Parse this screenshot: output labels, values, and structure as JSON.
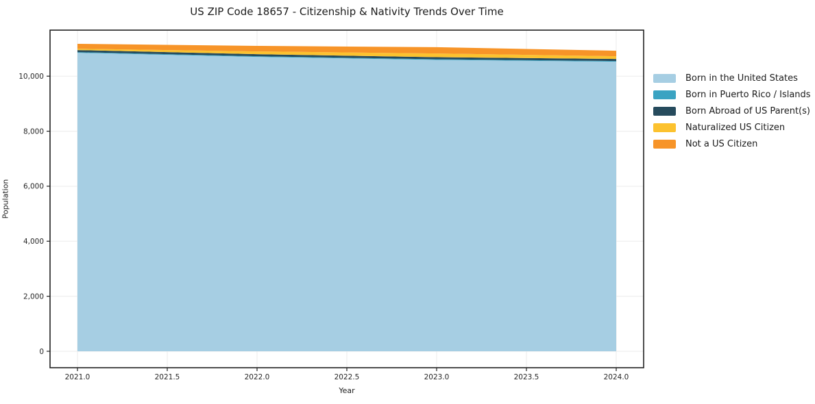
{
  "title": "US ZIP Code 18657 - Citizenship & Nativity Trends Over Time",
  "colors": {
    "background": "#ffffff",
    "plot_frame": "#1f1f1f",
    "gridline": "#ebebeb",
    "tick_text": "#262626"
  },
  "chart_data": {
    "type": "area",
    "stacked": true,
    "title": "US ZIP Code 18657 - Citizenship & Nativity Trends Over Time",
    "xlabel": "Year",
    "ylabel": "Population",
    "x": [
      2021,
      2022,
      2023,
      2024
    ],
    "x_ticks": [
      2021.0,
      2021.5,
      2022.0,
      2022.5,
      2023.0,
      2023.5,
      2024.0
    ],
    "x_ticklabels": [
      "2021.0",
      "2021.5",
      "2022.0",
      "2022.5",
      "2023.0",
      "2023.5",
      "2024.0"
    ],
    "y_ticks": [
      0,
      2000,
      4000,
      6000,
      8000,
      10000
    ],
    "y_ticklabels": [
      "0",
      "2,000",
      "4,000",
      "6,000",
      "8,000",
      "10,000"
    ],
    "xlim": [
      2020.85,
      2024.15
    ],
    "ylim": [
      -600,
      11670
    ],
    "grid": true,
    "legend_position": "right",
    "series": [
      {
        "name": "Born in the United States",
        "color": "#a6cee3",
        "values": [
          10850,
          10700,
          10590,
          10525
        ]
      },
      {
        "name": "Born in Puerto Rico / Islands",
        "color": "#3aa3c2",
        "values": [
          25,
          25,
          25,
          25
        ]
      },
      {
        "name": "Born Abroad of US Parent(s)",
        "color": "#264b5d",
        "values": [
          75,
          75,
          75,
          75
        ]
      },
      {
        "name": "Naturalized US Citizen",
        "color": "#fcc22f",
        "values": [
          50,
          100,
          135,
          100
        ]
      },
      {
        "name": "Not a US Citizen",
        "color": "#f79428",
        "values": [
          175,
          200,
          230,
          200
        ]
      }
    ]
  }
}
